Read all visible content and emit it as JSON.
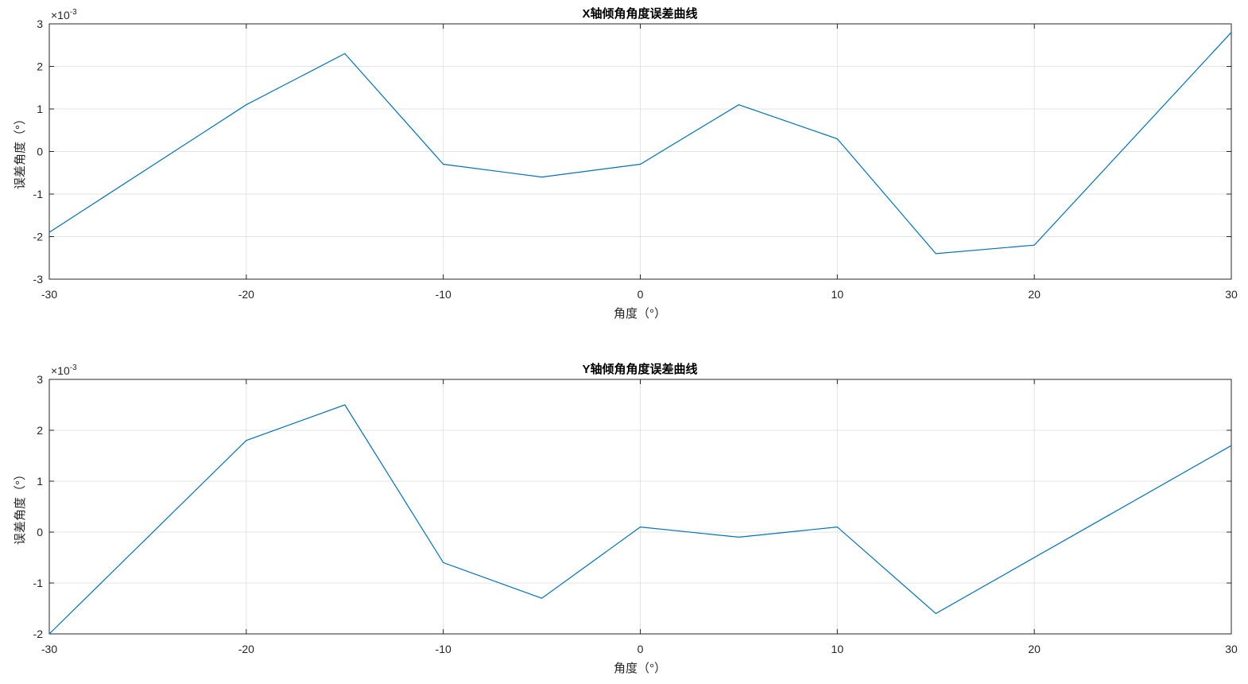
{
  "chart_data": [
    {
      "type": "line",
      "title": "X轴倾角角度误差曲线",
      "xlabel": "角度（°）",
      "ylabel": "误差角度（°）",
      "y_exponent_label": "×10",
      "y_exponent": "-3",
      "xlim": [
        -30,
        30
      ],
      "ylim": [
        -3,
        3
      ],
      "xticks": [
        -30,
        -20,
        -10,
        0,
        10,
        20,
        30
      ],
      "yticks": [
        -3,
        -2,
        -1,
        0,
        1,
        2,
        3
      ],
      "grid": true,
      "color": "#0072BD",
      "x": [
        -30,
        -20,
        -15,
        -10,
        -5,
        0,
        5,
        10,
        15,
        20,
        30
      ],
      "y": [
        -1.9,
        1.1,
        2.3,
        -0.3,
        -0.6,
        -0.3,
        1.1,
        0.3,
        -2.4,
        -2.2,
        2.8
      ]
    },
    {
      "type": "line",
      "title": "Y轴倾角角度误差曲线",
      "xlabel": "角度（°）",
      "ylabel": "误差角度（°）",
      "y_exponent_label": "×10",
      "y_exponent": "-3",
      "xlim": [
        -30,
        30
      ],
      "ylim": [
        -2,
        3
      ],
      "xticks": [
        -30,
        -20,
        -10,
        0,
        10,
        20,
        30
      ],
      "yticks": [
        -2,
        -1,
        0,
        1,
        2,
        3
      ],
      "grid": true,
      "color": "#0072BD",
      "x": [
        -30,
        -20,
        -15,
        -10,
        -5,
        0,
        5,
        10,
        15,
        30
      ],
      "y": [
        -2.0,
        1.8,
        2.5,
        -0.6,
        -1.3,
        0.1,
        -0.1,
        0.1,
        -1.6,
        1.7
      ]
    }
  ]
}
